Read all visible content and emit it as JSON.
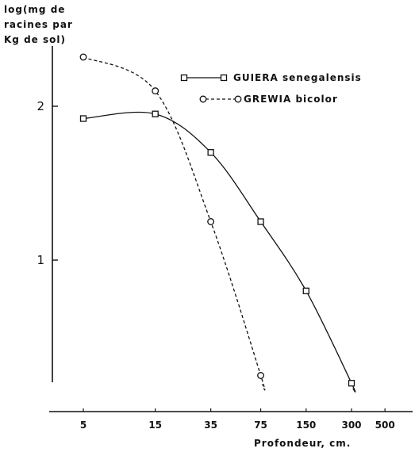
{
  "chart_data": {
    "type": "line",
    "ylabel_lines": [
      "log(mg de",
      "racines par",
      "Kg de sol)"
    ],
    "xlabel": "Profondeur, cm.",
    "x_ticks": [
      5,
      15,
      35,
      75,
      150,
      300,
      500
    ],
    "y_ticks": [
      1,
      2
    ],
    "ylim": [
      0.2,
      2.4
    ],
    "x_scale": "log",
    "grid": false,
    "legend_position": "top-right",
    "series": [
      {
        "name": "GUIERA senegalensis",
        "marker": "square",
        "line_style": "solid",
        "x": [
          5,
          15,
          35,
          75,
          150,
          300
        ],
        "y": [
          1.92,
          1.95,
          1.7,
          1.25,
          0.8,
          0.2
        ]
      },
      {
        "name": "GREWIA bicolor",
        "marker": "circle",
        "line_style": "dashed",
        "x": [
          5,
          15,
          35,
          75
        ],
        "y": [
          2.32,
          2.1,
          1.25,
          0.25
        ]
      }
    ]
  }
}
